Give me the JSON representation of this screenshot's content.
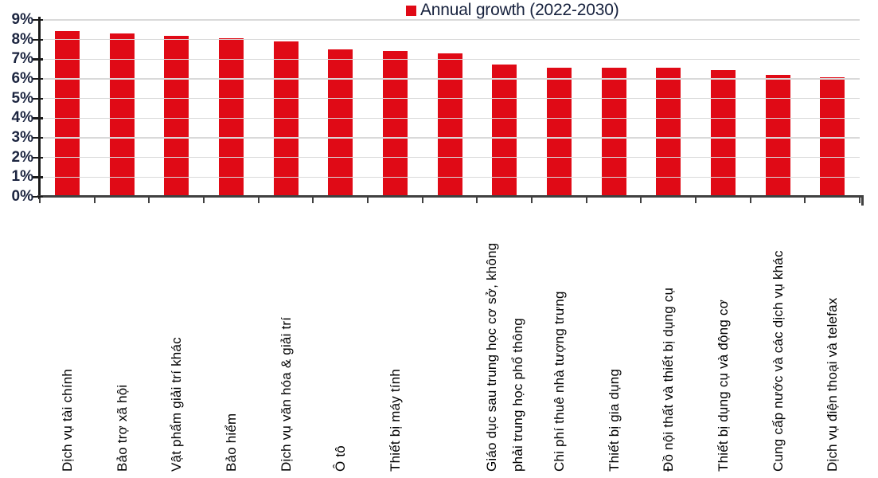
{
  "legend": {
    "label": "Annual growth (2022-2030)"
  },
  "colors": {
    "bar": "#e00a16",
    "grid": "#d9d9d9",
    "x_axis": "#404040",
    "y_axis": "#1b1b1b",
    "y_label_text": "#1c2540",
    "legend_text": "#16213d",
    "x_label_text": "#000000"
  },
  "chart_data": {
    "type": "bar",
    "title": "",
    "legend": [
      {
        "label": "Annual growth (2022-2030)",
        "color": "#e00a16"
      }
    ],
    "legend_position": "top",
    "categories": [
      "Dịch vụ tài chính",
      "Bảo trợ xã hội",
      "Vật phẩm giải trí khác",
      "Bảo hiểm",
      "Dịch vụ văn hóa & giải trí",
      "Ô tô",
      "Thiết bị máy tính",
      "",
      "Giáo dục sau trung học cơ sở, không\nphải trung học phổ thông",
      "Chi phí thuê nhà tượng trưng",
      "Thiết bị gia dụng",
      "Đồ nội thất và thiết bị dụng cụ",
      "Thiết bị dụng cụ và động cơ",
      "Cung cấp nước và các dịch vụ khác",
      "Dịch vụ điện thoại và telefax"
    ],
    "values": [
      8.45,
      8.3,
      8.2,
      8.05,
      7.9,
      7.5,
      7.4,
      7.3,
      6.75,
      6.55,
      6.55,
      6.55,
      6.45,
      6.2,
      6.1
    ],
    "unit": "%",
    "xlabel": "",
    "ylabel": "",
    "ylim": [
      0,
      9
    ],
    "yticks": [
      "0%",
      "1%",
      "2%",
      "3%",
      "4%",
      "5%",
      "6%",
      "7%",
      "8%",
      "9%"
    ],
    "grid": true
  }
}
